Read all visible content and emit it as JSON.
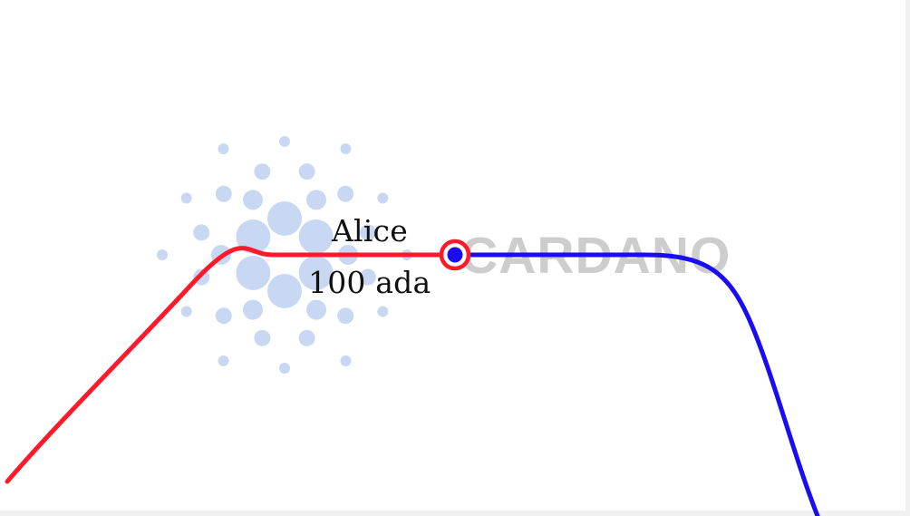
{
  "watermark": {
    "logo_name": "cardano-logo",
    "text": "CARDANO",
    "dot_color": "#c9d8f2",
    "text_color": "#cdcdcd"
  },
  "node": {
    "name": "Alice",
    "balance": "100 ada"
  },
  "colors": {
    "incoming_path": "#ff1a2b",
    "outgoing_path": "#1a0df2",
    "node_ring": "#ff1a2b",
    "node_center": "#1a0df2",
    "background": "#ffffff"
  }
}
